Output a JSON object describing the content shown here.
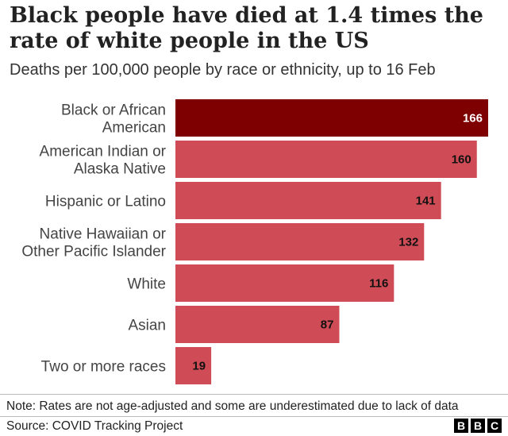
{
  "chart_data": {
    "type": "bar",
    "orientation": "horizontal",
    "title": "Black people have died at 1.4 times the rate of white people in the US",
    "subtitle": "Deaths per 100,000 people by race or ethnicity, up to 16 Feb",
    "categories": [
      "Black or African American",
      "American Indian or Alaska Native",
      "Hispanic or Latino",
      "Native Hawaiian or Other Pacific Islander",
      "White",
      "Asian",
      "Two or more races"
    ],
    "category_lines": [
      [
        "Black or African",
        "American"
      ],
      [
        "American Indian or",
        "Alaska Native"
      ],
      [
        "Hispanic or Latino"
      ],
      [
        "Native Hawaiian or",
        "Other Pacific Islander"
      ],
      [
        "White"
      ],
      [
        "Asian"
      ],
      [
        "Two or more races"
      ]
    ],
    "values": [
      166,
      160,
      141,
      132,
      116,
      87,
      19
    ],
    "highlight_index": 0,
    "colors": {
      "highlight": "#7f0000",
      "bar": "#cf4b55",
      "label_on_highlight": "#ffffff",
      "label_default": "#111111"
    },
    "xlim": [
      0,
      166
    ],
    "grid": false,
    "legend": "none"
  },
  "footer": {
    "note": "Note: Rates are not age-adjusted and some are underestimated due to lack of data",
    "source": "Source: COVID Tracking Project",
    "logo_letters": [
      "B",
      "B",
      "C"
    ]
  }
}
